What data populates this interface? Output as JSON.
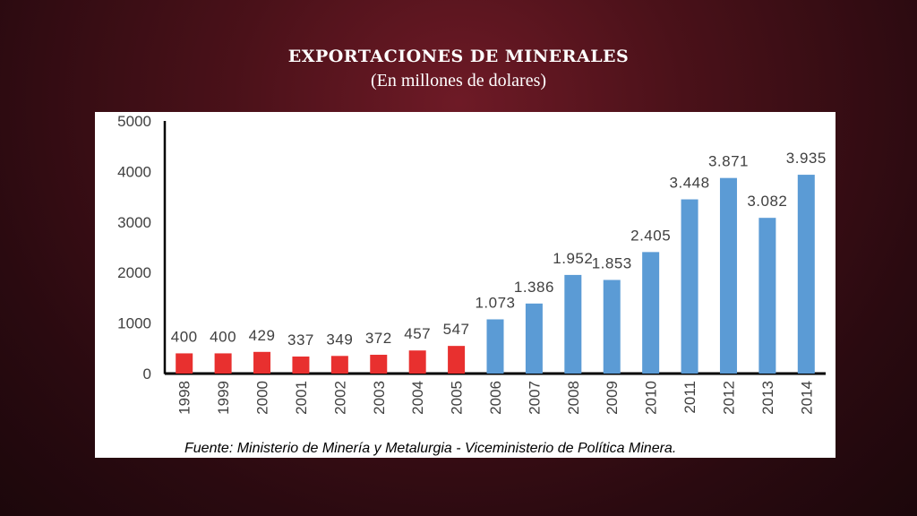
{
  "title": "EXPORTACIONES DE MINERALES",
  "subtitle": "(En millones de dolares)",
  "source": "Fuente: Ministerio de Minería y Metalurgia - Viceministerio de Política Minera.",
  "colors": {
    "red": "#e8302f",
    "blue": "#5b9bd5"
  },
  "chart_data": {
    "type": "bar",
    "categories": [
      "1998",
      "1999",
      "2000",
      "2001",
      "2002",
      "2003",
      "2004",
      "2005",
      "2006",
      "2007",
      "2008",
      "2009",
      "2010",
      "2011",
      "2012",
      "2013",
      "2014"
    ],
    "values": [
      400,
      400,
      429,
      337,
      349,
      372,
      457,
      547,
      1073,
      1386,
      1952,
      1853,
      2405,
      3448,
      3871,
      3082,
      3935
    ],
    "labels": [
      "400",
      "400",
      "429",
      "337",
      "349",
      "372",
      "457",
      "547",
      "1.073",
      "1.386",
      "1.952",
      "1.853",
      "2.405",
      "3.448",
      "3.871",
      "3.082",
      "3.935"
    ],
    "bar_colors": [
      "red",
      "red",
      "red",
      "red",
      "red",
      "red",
      "red",
      "red",
      "blue",
      "blue",
      "blue",
      "blue",
      "blue",
      "blue",
      "blue",
      "blue",
      "blue"
    ],
    "ylim": [
      0,
      5000
    ],
    "yticks": [
      0,
      1000,
      2000,
      3000,
      4000,
      5000
    ],
    "grid": false,
    "legend": "none"
  }
}
